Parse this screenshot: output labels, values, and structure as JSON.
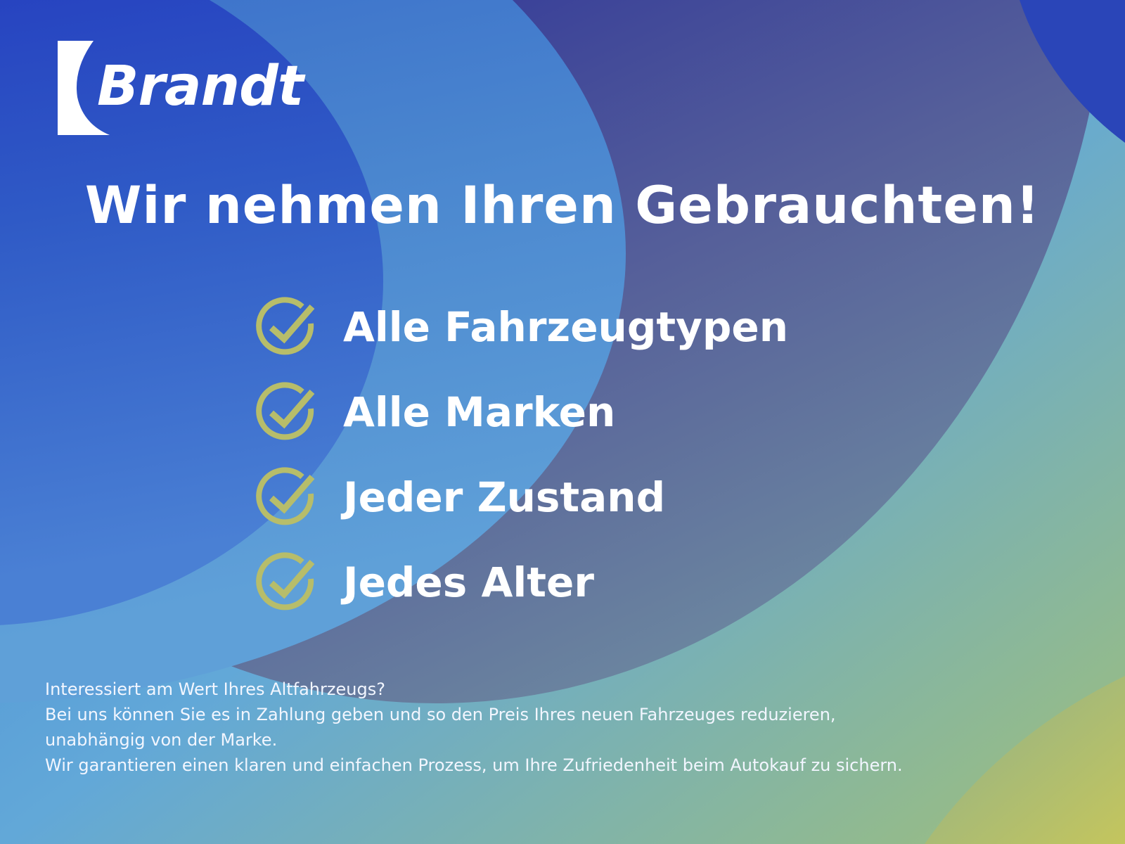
{
  "brand": {
    "name": "Brandt"
  },
  "headline": "Wir nehmen Ihren Gebrauchten!",
  "checklist": [
    {
      "label": "Alle Fahrzeugtypen",
      "icon": "check-circle-icon"
    },
    {
      "label": "Alle Marken",
      "icon": "check-circle-icon"
    },
    {
      "label": "Jeder Zustand",
      "icon": "check-circle-icon"
    },
    {
      "label": "Jedes Alter",
      "icon": "check-circle-icon"
    }
  ],
  "body_lines": [
    "Interessiert am Wert Ihres Altfahrzeugs?",
    "Bei uns können Sie es in Zahlung geben und so den Preis Ihres neuen Fahrzeuges reduzieren,",
    "unabhängig von der Marke.",
    "Wir garantieren einen klaren und einfachen Prozess, um Ihre Zufriedenheit beim Autokauf zu sichern."
  ],
  "colors": {
    "check": "#b7bd6a",
    "deep_blue": "#0d0f90",
    "royal_blue": "#2a3fc0",
    "sky_blue": "#62b2e6",
    "olive": "#c4c85e"
  }
}
